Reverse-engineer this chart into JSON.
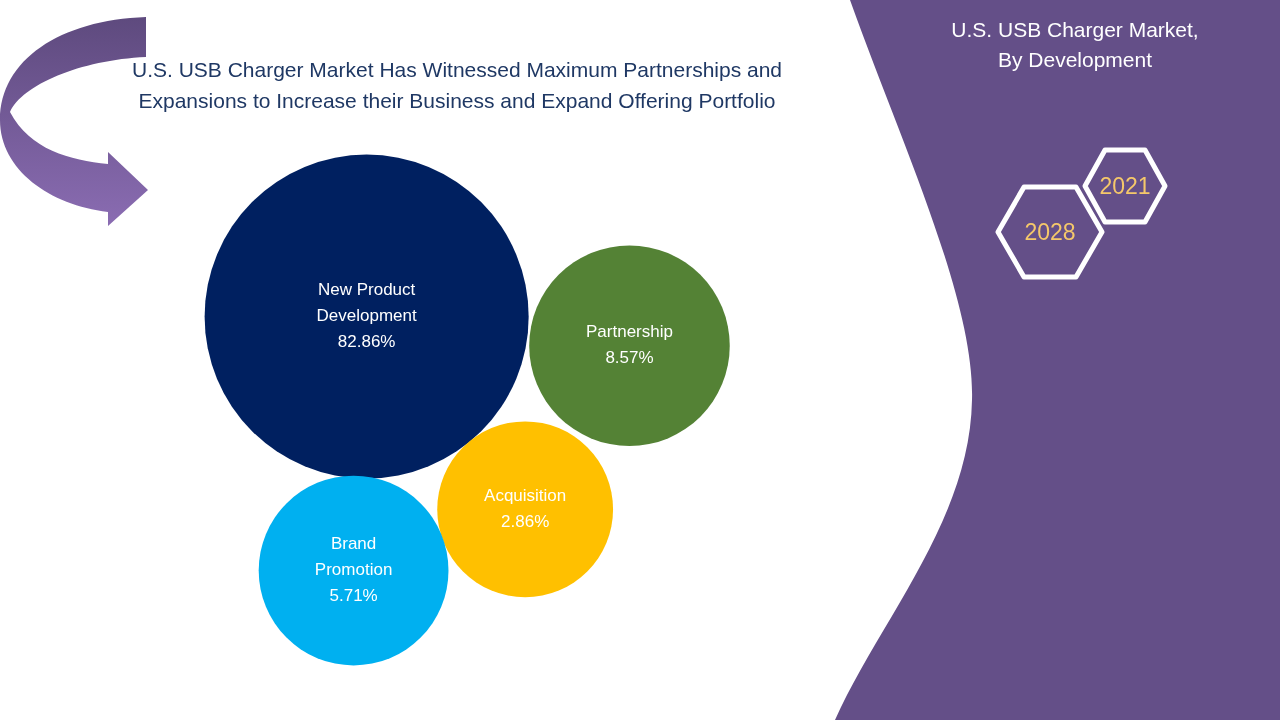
{
  "chart_data": {
    "type": "other",
    "title": "U.S. USB Charger Market Has Witnessed Maximum Partnerships and Expansions to Increase their Business and Expand Offering Portfolio",
    "subtitle": "U.S. USB Charger Market, By Development",
    "categories": [
      "New Product Development",
      "Partnership",
      "Acquisition",
      "Brand Promotion"
    ],
    "values": [
      82.86,
      8.57,
      2.86,
      5.71
    ],
    "value_labels": [
      "82.86%",
      "8.57%",
      "2.86%",
      "5.71%"
    ],
    "colors": [
      "#002060",
      "#548235",
      "#ffc000",
      "#00b0f0"
    ],
    "annotations": [
      "2021",
      "2028"
    ]
  }
}
